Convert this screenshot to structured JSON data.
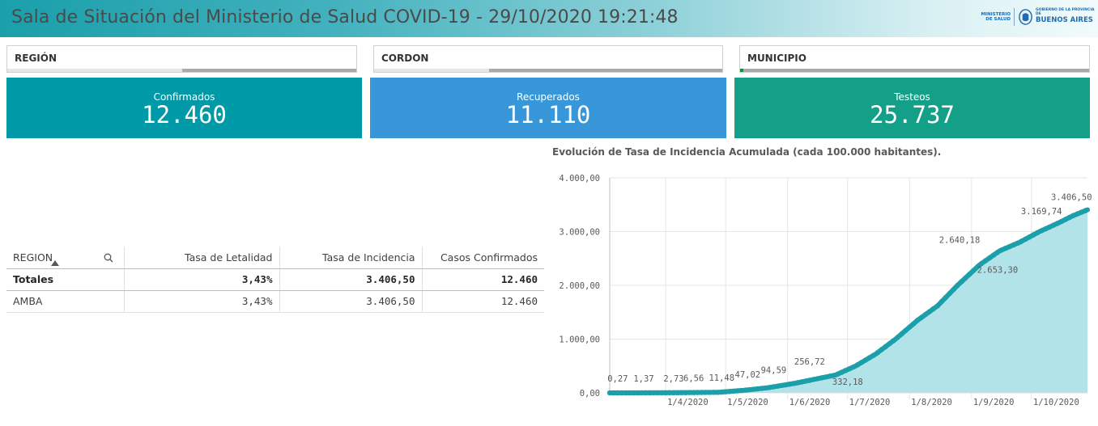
{
  "header": {
    "title": "Sala de Situación del Ministerio de Salud COVID-19 - 29/10/2020 19:21:48",
    "logo_ministry": "MINISTERIO DE SALUD",
    "logo_gov_small": "GOBIERNO DE LA PROVINCIA DE",
    "logo_gov_big": "BUENOS AIRES"
  },
  "filters": [
    {
      "label": "REGIÓN",
      "selected_fraction": 0.5
    },
    {
      "label": "CORDON",
      "selected_fraction": 0.33
    },
    {
      "label": "MUNICIPIO",
      "selected_fraction": 0.01
    }
  ],
  "kpis": [
    {
      "label": "Confirmados",
      "value": "12.460",
      "color": "#0099a8"
    },
    {
      "label": "Recuperados",
      "value": "11.110",
      "color": "#3897d9"
    },
    {
      "label": "Testeos",
      "value": "25.737",
      "color": "#14a088"
    }
  ],
  "table": {
    "headers": [
      "REGION",
      "Tasa de Letalidad",
      "Tasa de Incidencia",
      "Casos Confirmados"
    ],
    "totals": [
      "Totales",
      "3,43%",
      "3.406,50",
      "12.460"
    ],
    "rows": [
      [
        "AMBA",
        "3,43%",
        "3.406,50",
        "12.460"
      ]
    ]
  },
  "chart_title": "Evolución de Tasa de Incidencia Acumulada (cada 100.000 habitantes).",
  "chart_data": {
    "type": "area",
    "x_start": "2020-03-04",
    "x_end": "2020-10-29",
    "xticks": [
      "1/4/2020",
      "1/5/2020",
      "1/6/2020",
      "1/7/2020",
      "1/8/2020",
      "1/9/2020",
      "1/10/2020"
    ],
    "yticks": [
      "0,00",
      "1.000,00",
      "2.000,00",
      "3.000,00",
      "4.000,00"
    ],
    "ylim": [
      0,
      4000
    ],
    "grid": true,
    "line_color": "#1a9fab",
    "fill_color": "#b2e3e8",
    "points": [
      {
        "x": "2020-03-04",
        "y": 0
      },
      {
        "x": "2020-03-15",
        "y": 0.27
      },
      {
        "x": "2020-03-25",
        "y": 1.37
      },
      {
        "x": "2020-04-05",
        "y": 2.73
      },
      {
        "x": "2020-04-15",
        "y": 6.56
      },
      {
        "x": "2020-04-28",
        "y": 11.48
      },
      {
        "x": "2020-05-10",
        "y": 47.02
      },
      {
        "x": "2020-05-22",
        "y": 94.59
      },
      {
        "x": "2020-06-05",
        "y": 180
      },
      {
        "x": "2020-06-15",
        "y": 256.72
      },
      {
        "x": "2020-06-25",
        "y": 332.18
      },
      {
        "x": "2020-07-05",
        "y": 500
      },
      {
        "x": "2020-07-15",
        "y": 720
      },
      {
        "x": "2020-07-25",
        "y": 1000
      },
      {
        "x": "2020-08-05",
        "y": 1350
      },
      {
        "x": "2020-08-15",
        "y": 1620
      },
      {
        "x": "2020-08-25",
        "y": 2000
      },
      {
        "x": "2020-09-05",
        "y": 2380
      },
      {
        "x": "2020-09-15",
        "y": 2640.18
      },
      {
        "x": "2020-09-25",
        "y": 2800
      },
      {
        "x": "2020-10-05",
        "y": 3000
      },
      {
        "x": "2020-10-15",
        "y": 3169.74
      },
      {
        "x": "2020-10-22",
        "y": 3300
      },
      {
        "x": "2020-10-29",
        "y": 3406.5
      }
    ],
    "labels": [
      {
        "x": "2020-03-08",
        "y": 0.27,
        "text": "0,27",
        "dy": -14
      },
      {
        "x": "2020-03-21",
        "y": 1.37,
        "text": "1,37",
        "dy": -14
      },
      {
        "x": "2020-04-05",
        "y": 2.73,
        "text": "2,73",
        "dy": -14
      },
      {
        "x": "2020-04-15",
        "y": 6.56,
        "text": "6,56",
        "dy": -14
      },
      {
        "x": "2020-04-29",
        "y": 11.48,
        "text": "11,48",
        "dy": -14
      },
      {
        "x": "2020-05-12",
        "y": 47.02,
        "text": "47,02",
        "dy": -16
      },
      {
        "x": "2020-05-25",
        "y": 94.59,
        "text": "94,59",
        "dy": -18
      },
      {
        "x": "2020-06-12",
        "y": 256.72,
        "text": "256,72",
        "dy": -18
      },
      {
        "x": "2020-07-01",
        "y": 332.18,
        "text": "332,18",
        "dy": 12
      },
      {
        "x": "2020-08-26",
        "y": 2640.18,
        "text": "2.640,18",
        "dy": -10
      },
      {
        "x": "2020-09-14",
        "y": 2653.3,
        "text": "2.653,30",
        "dy": 28
      },
      {
        "x": "2020-10-06",
        "y": 3169.74,
        "text": "3.169,74",
        "dy": -10
      },
      {
        "x": "2020-10-21",
        "y": 3406.5,
        "text": "3.406,50",
        "dy": -12
      }
    ]
  }
}
